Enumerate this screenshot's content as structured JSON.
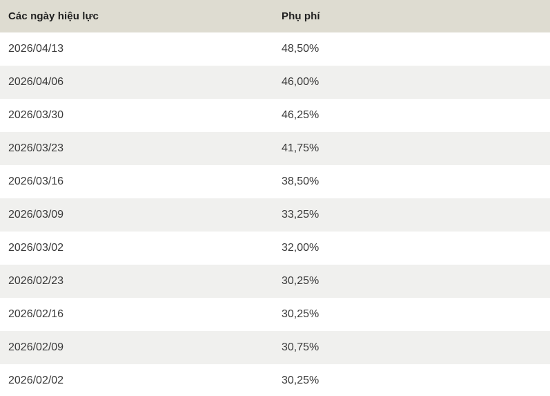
{
  "table": {
    "columns": [
      {
        "key": "date",
        "label": "Các ngày hiệu lực"
      },
      {
        "key": "surcharge",
        "label": "Phụ phí"
      }
    ],
    "rows": [
      {
        "date": "2026/04/13",
        "surcharge": "48,50%"
      },
      {
        "date": "2026/04/06",
        "surcharge": "46,00%"
      },
      {
        "date": "2026/03/30",
        "surcharge": "46,25%"
      },
      {
        "date": "2026/03/23",
        "surcharge": "41,75%"
      },
      {
        "date": "2026/03/16",
        "surcharge": "38,50%"
      },
      {
        "date": "2026/03/09",
        "surcharge": "33,25%"
      },
      {
        "date": "2026/03/02",
        "surcharge": "32,00%"
      },
      {
        "date": "2026/02/23",
        "surcharge": "30,25%"
      },
      {
        "date": "2026/02/16",
        "surcharge": "30,25%"
      },
      {
        "date": "2026/02/09",
        "surcharge": "30,75%"
      },
      {
        "date": "2026/02/02",
        "surcharge": "30,25%"
      }
    ]
  },
  "colors": {
    "header_bg": "#dedcd1",
    "row_bg": "#ffffff",
    "row_alt_bg": "#f0f0ee",
    "header_text": "#1f1f1f",
    "cell_text": "#3a3a3a"
  }
}
